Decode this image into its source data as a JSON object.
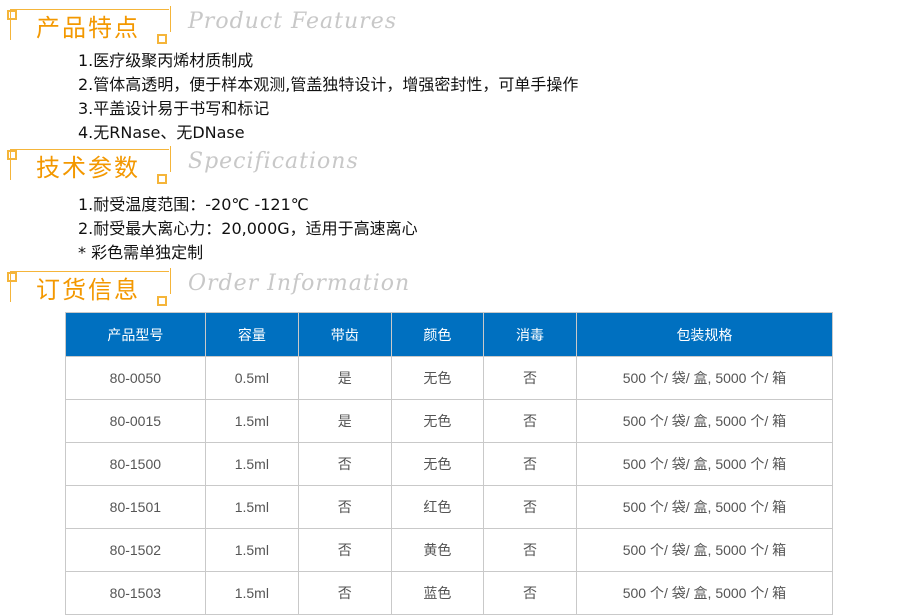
{
  "sections": [
    {
      "cn": "产品特点",
      "en": "Product Features",
      "lines": [
        "1.医疗级聚丙烯材质制成",
        "2.管体高透明，便于样本观测,管盖独特设计，增强密封性，可单手操作",
        "3.平盖设计易于书写和标记",
        "4.无RNase、无DNase"
      ]
    },
    {
      "cn": "技术参数",
      "en": "Specifications",
      "lines": [
        "1.耐受温度范围：-20℃ -121℃",
        "2.耐受最大离心力：20,000G，适用于高速离心",
        "* 彩色需单独定制"
      ]
    },
    {
      "cn": "订货信息",
      "en": "Order Information",
      "lines": []
    }
  ],
  "table": {
    "headers": [
      "产品型号",
      "容量",
      "带齿",
      "颜色",
      "消毒",
      "包装规格"
    ],
    "rows": [
      [
        "80-0050",
        "0.5ml",
        "是",
        "无色",
        "否",
        "500 个/ 袋/ 盒, 5000 个/ 箱"
      ],
      [
        "80-0015",
        "1.5ml",
        "是",
        "无色",
        "否",
        "500 个/ 袋/ 盒, 5000 个/ 箱"
      ],
      [
        "80-1500",
        "1.5ml",
        "否",
        "无色",
        "否",
        "500 个/ 袋/ 盒, 5000 个/ 箱"
      ],
      [
        "80-1501",
        "1.5ml",
        "否",
        "红色",
        "否",
        "500 个/ 袋/ 盒, 5000 个/ 箱"
      ],
      [
        "80-1502",
        "1.5ml",
        "否",
        "黄色",
        "否",
        "500 个/ 袋/ 盒, 5000 个/ 箱"
      ],
      [
        "80-1503",
        "1.5ml",
        "否",
        "蓝色",
        "否",
        "500 个/ 袋/ 盒, 5000 个/ 箱"
      ]
    ]
  },
  "colors": {
    "accent": "#f39800",
    "header_bg": "#0070c0"
  }
}
